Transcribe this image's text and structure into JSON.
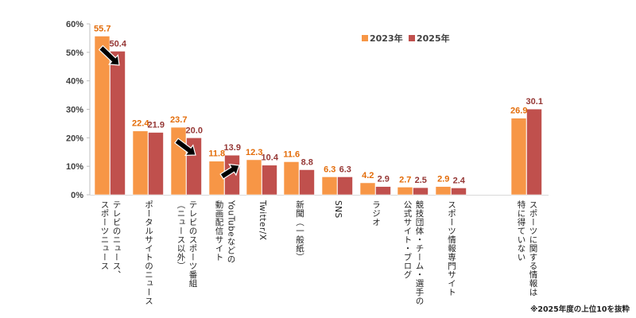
{
  "chart_data": {
    "type": "bar",
    "title": "",
    "xlabel": "",
    "ylabel": "",
    "ylim": [
      0,
      60
    ],
    "yticks": [
      "0%",
      "10%",
      "20%",
      "30%",
      "40%",
      "50%",
      "60%"
    ],
    "ytick_values": [
      0,
      10,
      20,
      30,
      40,
      50,
      60
    ],
    "grid": false,
    "legend_position": "top-right",
    "categories": [
      "テレビのニュース、\nスポーツニュース",
      "ポータルサイトのニュース",
      "テレビのスポーツ番組\n（ニュース以外）",
      "YouTubeなどの\n動画配信サイト",
      "Twitter/X",
      "新聞（一般紙）",
      "SNS",
      "ラジオ",
      "競技団体・チーム・選手の\n公式サイト・ブログ",
      "スポーツ情報専門サイト",
      "スポーツに関する情報は\n特に得ていない"
    ],
    "series": [
      {
        "name": "2023年",
        "color": "#F79646",
        "label_color": "#E36C09",
        "values": [
          55.7,
          22.4,
          23.7,
          11.8,
          12.3,
          11.6,
          6.3,
          4.2,
          2.7,
          2.9,
          26.9
        ]
      },
      {
        "name": "2025年",
        "color": "#C0504D",
        "label_color": "#953735",
        "values": [
          50.4,
          21.9,
          20.0,
          13.9,
          10.4,
          8.8,
          6.3,
          2.9,
          2.5,
          2.4,
          30.1
        ]
      }
    ],
    "annotations": [
      {
        "type": "arrow",
        "direction": "down",
        "category_index": 0
      },
      {
        "type": "arrow",
        "direction": "down",
        "category_index": 2
      },
      {
        "type": "arrow",
        "direction": "up",
        "category_index": 3
      }
    ],
    "footnote": "※2025年度の上位10を抜粋"
  }
}
